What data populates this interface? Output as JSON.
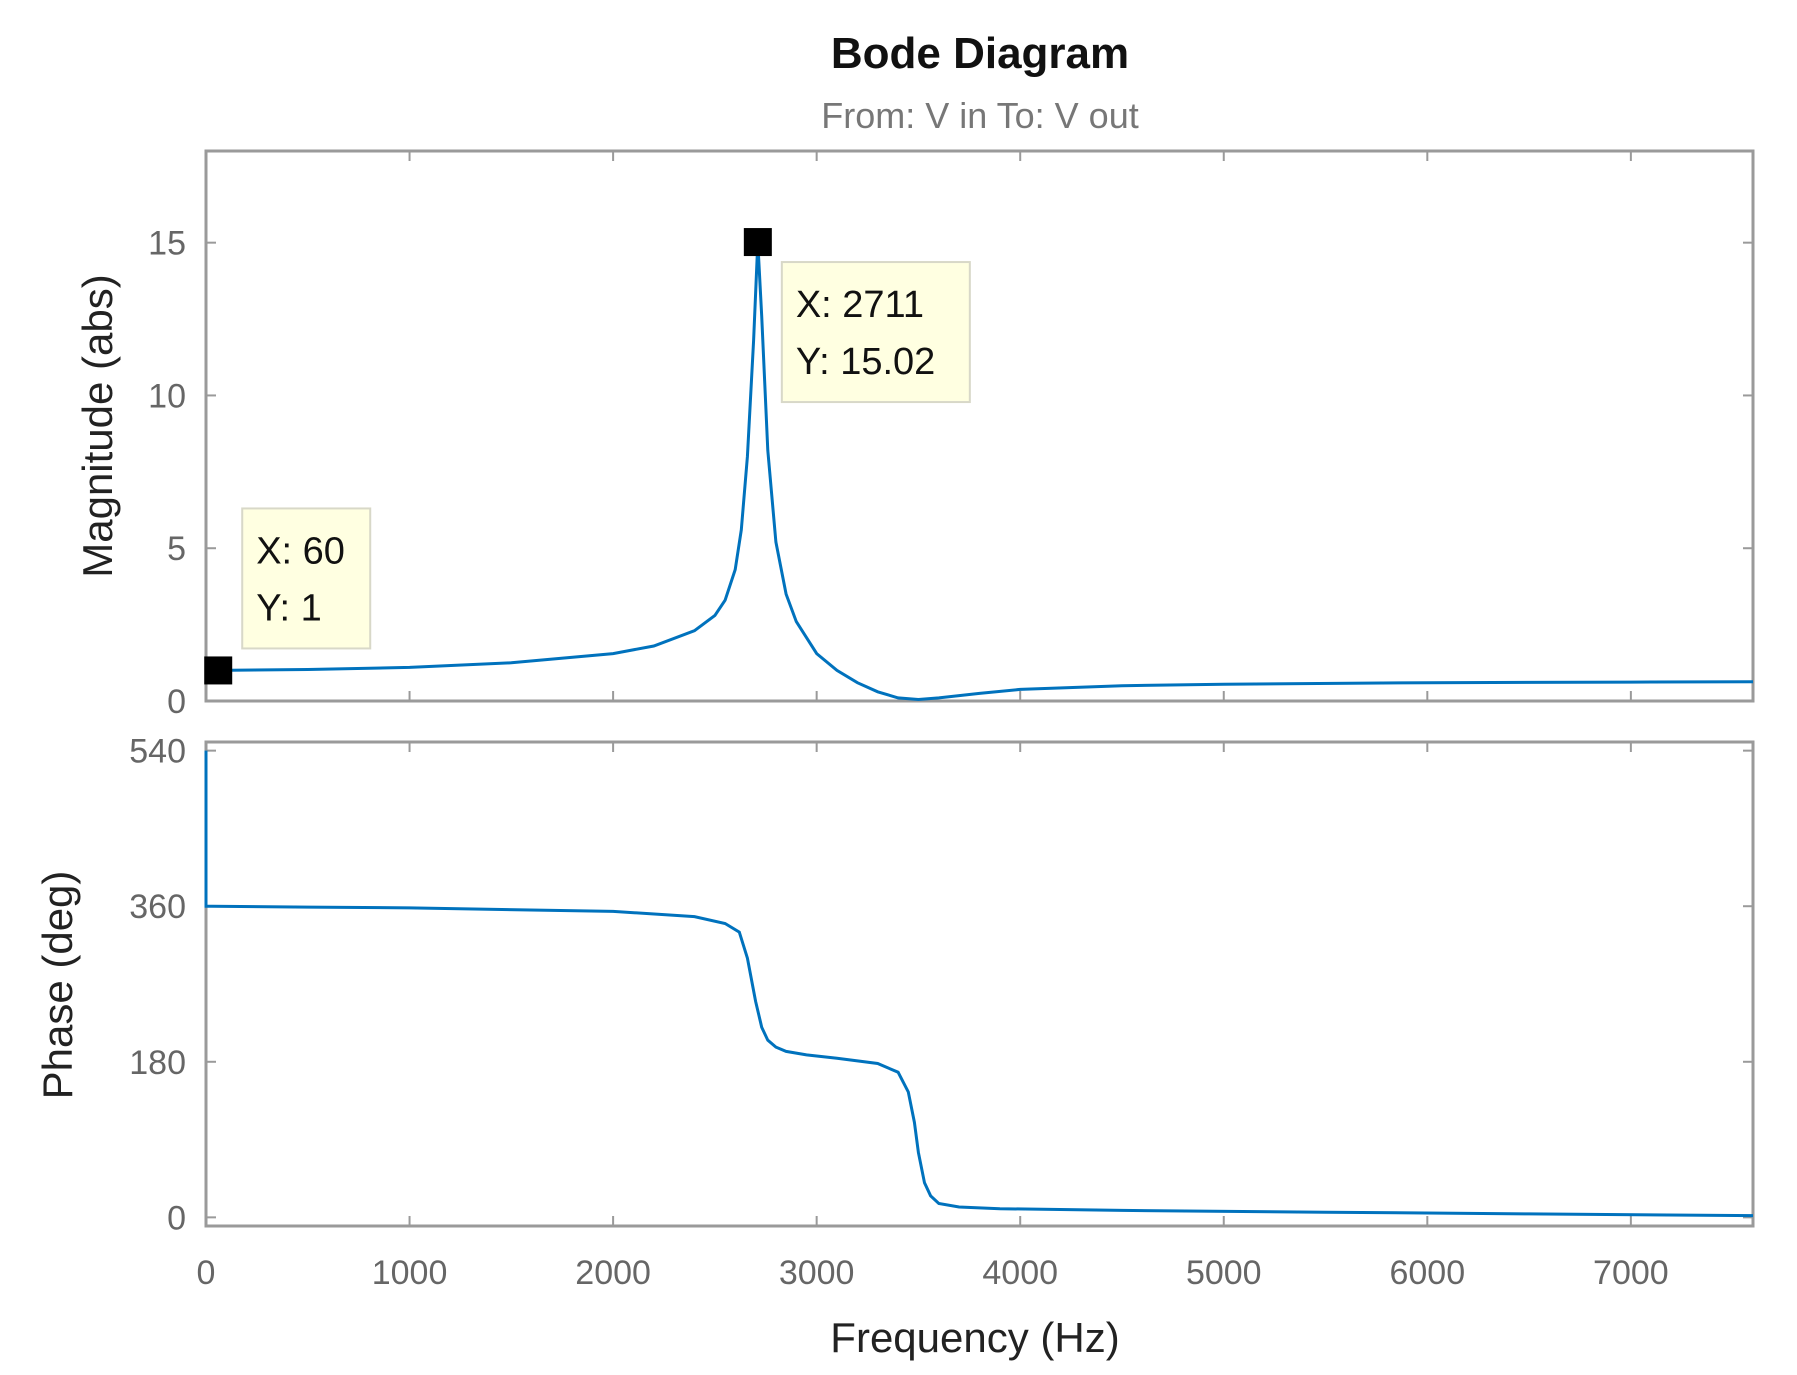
{
  "header": {
    "title": "Bode Diagram",
    "subtitle": "From: V in  To: V out"
  },
  "xaxis": {
    "label": "Frequency  (Hz)",
    "tick_labels": [
      "0",
      "1000",
      "2000",
      "3000",
      "4000",
      "5000",
      "6000",
      "7000"
    ]
  },
  "magnitude_axis": {
    "label": "Magnitude (abs)",
    "tick_labels": [
      "0",
      "5",
      "10",
      "15"
    ]
  },
  "phase_axis": {
    "label": "Phase (deg)",
    "tick_labels": [
      "0",
      "180",
      "360",
      "540"
    ]
  },
  "datatips": [
    {
      "x_text": "X: 2711",
      "y_text": "Y: 15.02"
    },
    {
      "x_text": "X: 60",
      "y_text": "Y: 1"
    }
  ],
  "colors": {
    "line": "#0072BD",
    "axes": "#9a9a9a",
    "datatip_bg": "#ffffe1"
  },
  "chart_data": [
    {
      "type": "line",
      "title": "Bode Diagram",
      "subtitle": "From: V in  To: V out",
      "xlabel": "Frequency  (Hz)",
      "ylabel": "Magnitude (abs)",
      "xlim": [
        0,
        7600
      ],
      "ylim": [
        0,
        18
      ],
      "xticks": [
        0,
        1000,
        2000,
        3000,
        4000,
        5000,
        6000,
        7000
      ],
      "yticks": [
        0,
        5,
        10,
        15
      ],
      "grid": false,
      "series": [
        {
          "x": [
            0,
            60,
            500,
            1000,
            1500,
            2000,
            2200,
            2400,
            2500,
            2550,
            2600,
            2630,
            2660,
            2690,
            2711,
            2730,
            2760,
            2800,
            2850,
            2900,
            3000,
            3100,
            3200,
            3300,
            3400,
            3500,
            3600,
            3800,
            4000,
            4500,
            5000,
            6000,
            7000,
            7600
          ],
          "values": [
            1,
            1,
            1.03,
            1.1,
            1.25,
            1.55,
            1.8,
            2.3,
            2.8,
            3.3,
            4.3,
            5.6,
            8.0,
            11.8,
            15.02,
            12.6,
            8.2,
            5.2,
            3.5,
            2.6,
            1.55,
            1.0,
            0.6,
            0.3,
            0.1,
            0.05,
            0.1,
            0.25,
            0.38,
            0.5,
            0.55,
            0.6,
            0.62,
            0.63
          ]
        }
      ],
      "datatips": [
        {
          "x": 2711,
          "y": 15.02
        },
        {
          "x": 60,
          "y": 1
        }
      ]
    },
    {
      "type": "line",
      "xlabel": "Frequency  (Hz)",
      "ylabel": "Phase (deg)",
      "xlim": [
        0,
        7600
      ],
      "ylim": [
        -10,
        550
      ],
      "xticks": [
        0,
        1000,
        2000,
        3000,
        4000,
        5000,
        6000,
        7000
      ],
      "yticks": [
        0,
        180,
        360,
        540
      ],
      "grid": false,
      "series": [
        {
          "x": [
            0,
            0,
            30,
            500,
            1000,
            2000,
            2400,
            2550,
            2620,
            2660,
            2700,
            2730,
            2760,
            2800,
            2850,
            2950,
            3100,
            3300,
            3400,
            3450,
            3480,
            3500,
            3530,
            3560,
            3600,
            3700,
            3900,
            4500,
            5500,
            6500,
            7600
          ],
          "values": [
            540,
            360,
            360,
            359,
            358,
            354,
            348,
            340,
            330,
            300,
            250,
            220,
            205,
            197,
            192,
            188,
            184,
            178,
            168,
            145,
            110,
            75,
            40,
            25,
            16,
            12,
            10,
            8,
            6,
            4,
            2
          ]
        }
      ]
    }
  ]
}
